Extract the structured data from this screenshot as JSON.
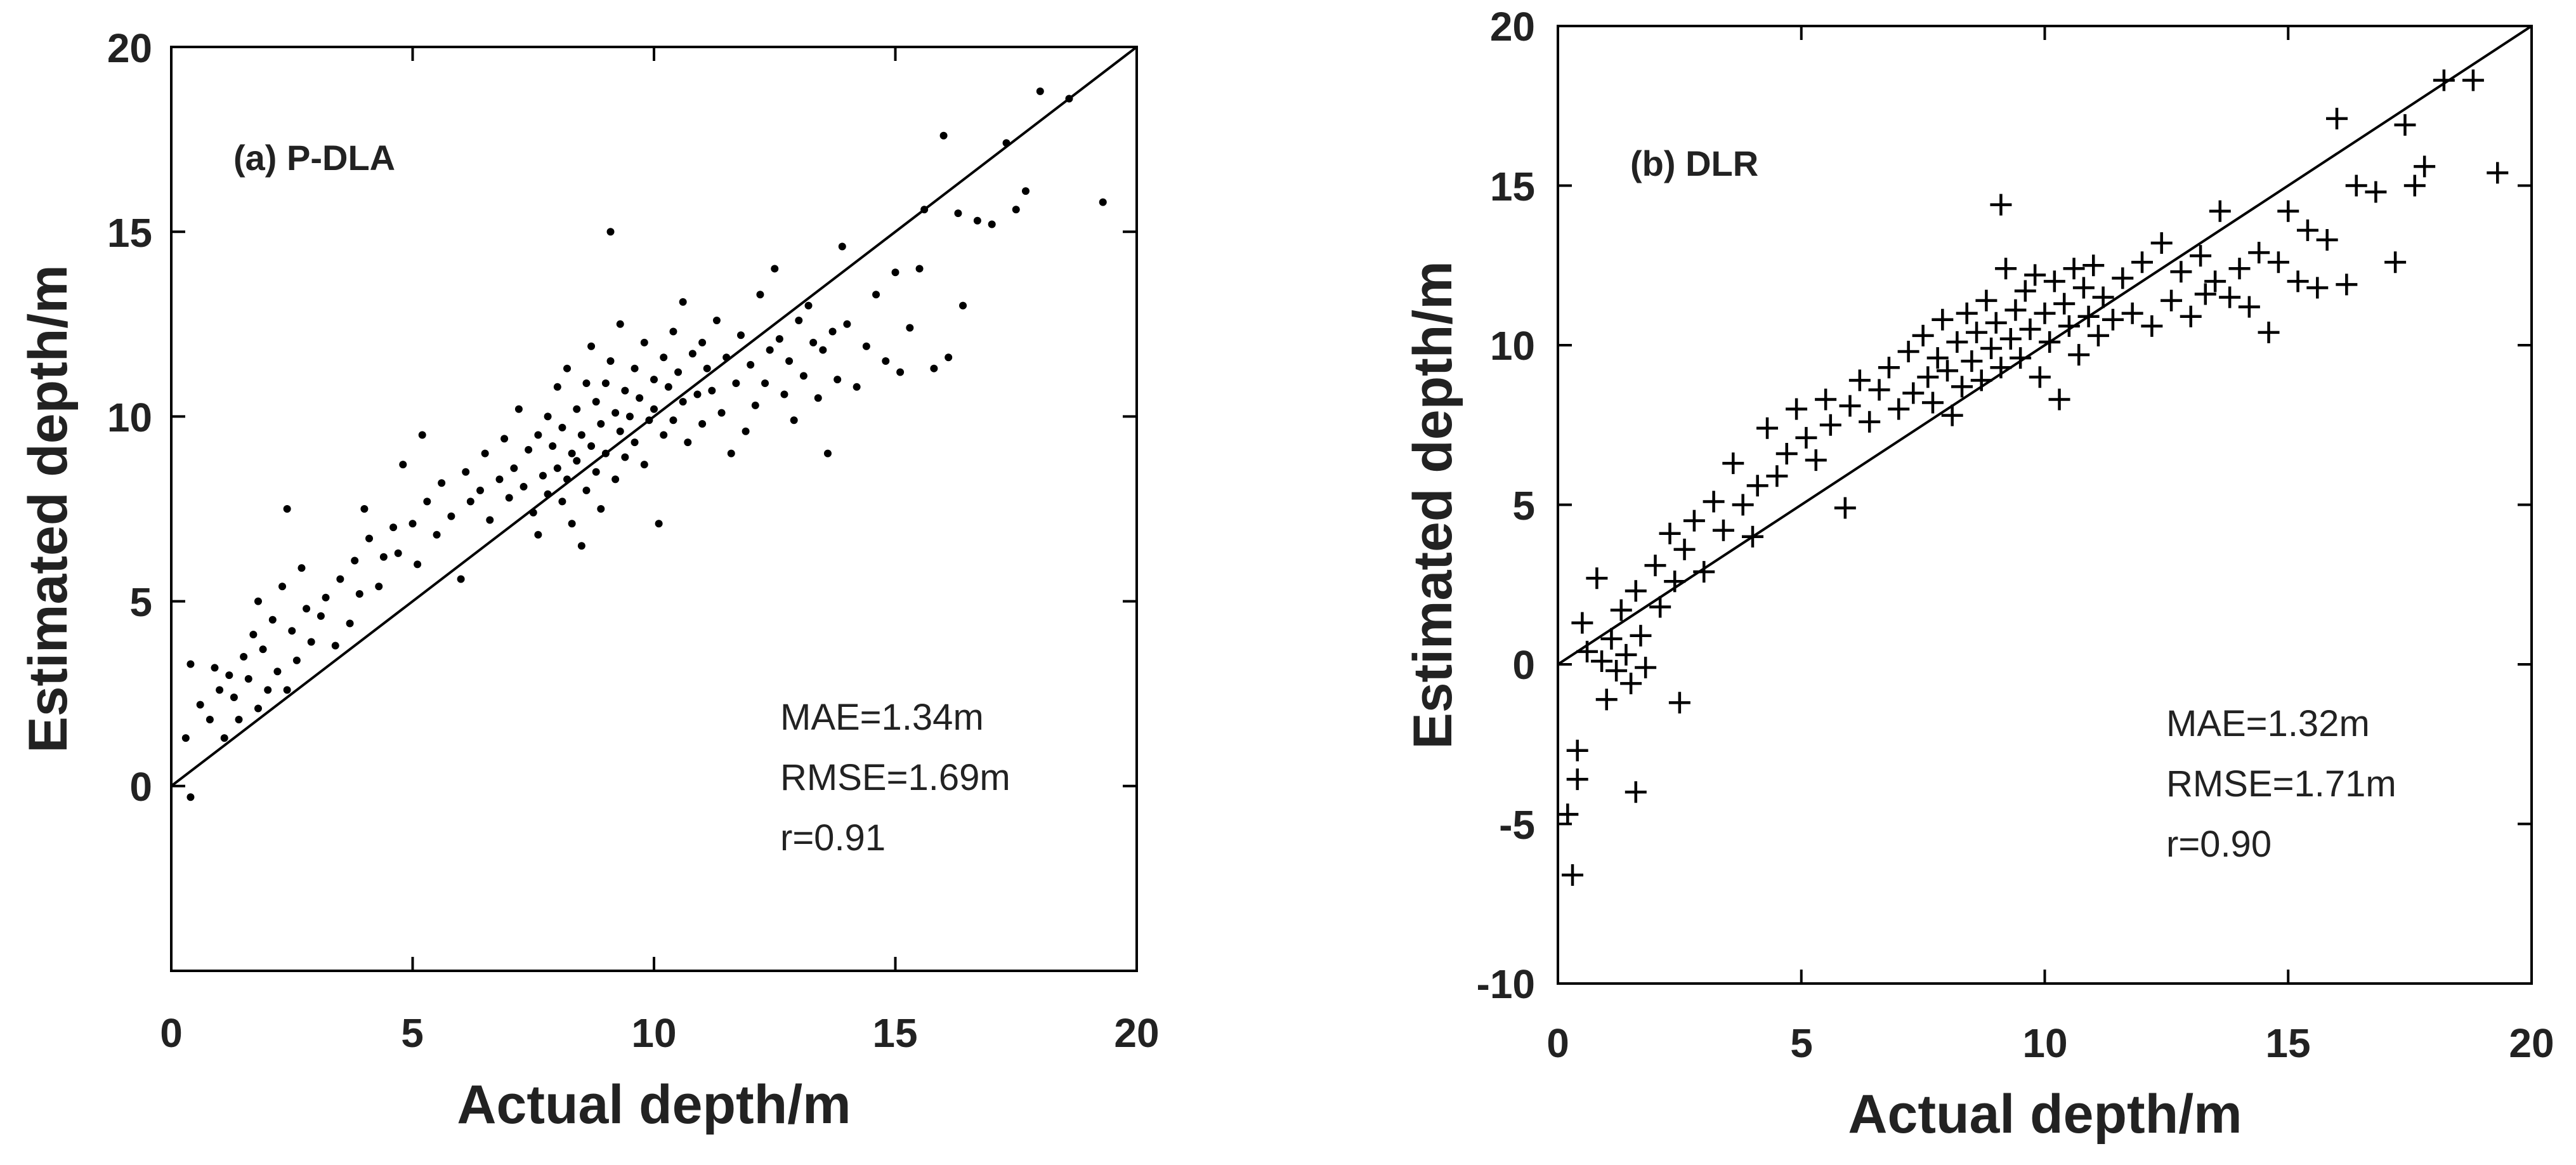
{
  "chart_data": [
    {
      "type": "scatter",
      "marker": "dot",
      "title": "(a) P-DLA",
      "xlabel": "Actual depth/m",
      "ylabel": "Estimated depth/m",
      "xlim": [
        0,
        20
      ],
      "ylim": [
        -5,
        20
      ],
      "xticks": [
        0,
        5,
        10,
        15,
        20
      ],
      "yticks": [
        0,
        5,
        10,
        15,
        20
      ],
      "xtick_labels": [
        "0",
        "5",
        "10",
        "15",
        "20"
      ],
      "ytick_labels": [
        "0",
        "5",
        "10",
        "15",
        "20"
      ],
      "reference_line": "y = x",
      "stats": [
        "MAE=1.34m",
        "RMSE=1.69m",
        "r=0.91"
      ],
      "points": [
        [
          0.4,
          -0.3
        ],
        [
          0.3,
          1.3
        ],
        [
          0.4,
          3.3
        ],
        [
          0.6,
          2.2
        ],
        [
          0.8,
          1.8
        ],
        [
          0.9,
          3.2
        ],
        [
          1.0,
          2.6
        ],
        [
          1.1,
          1.3
        ],
        [
          1.2,
          3.0
        ],
        [
          1.3,
          2.4
        ],
        [
          1.4,
          1.8
        ],
        [
          1.5,
          3.5
        ],
        [
          1.6,
          2.9
        ],
        [
          1.7,
          4.1
        ],
        [
          1.8,
          2.1
        ],
        [
          1.8,
          5.0
        ],
        [
          1.9,
          3.7
        ],
        [
          2.0,
          2.6
        ],
        [
          2.1,
          4.5
        ],
        [
          2.2,
          3.1
        ],
        [
          2.3,
          5.4
        ],
        [
          2.4,
          2.6
        ],
        [
          2.4,
          7.5
        ],
        [
          2.5,
          4.2
        ],
        [
          2.6,
          3.4
        ],
        [
          2.7,
          5.9
        ],
        [
          2.8,
          4.8
        ],
        [
          2.9,
          3.9
        ],
        [
          3.1,
          4.6
        ],
        [
          3.2,
          5.1
        ],
        [
          3.4,
          3.8
        ],
        [
          3.5,
          5.6
        ],
        [
          3.7,
          4.4
        ],
        [
          3.8,
          6.1
        ],
        [
          3.9,
          5.2
        ],
        [
          4.0,
          7.5
        ],
        [
          4.1,
          6.7
        ],
        [
          4.3,
          5.4
        ],
        [
          4.4,
          6.2
        ],
        [
          4.6,
          7.0
        ],
        [
          4.7,
          6.3
        ],
        [
          4.8,
          8.7
        ],
        [
          5.0,
          7.1
        ],
        [
          5.1,
          6.0
        ],
        [
          5.2,
          9.5
        ],
        [
          5.3,
          7.7
        ],
        [
          5.5,
          6.8
        ],
        [
          5.6,
          8.2
        ],
        [
          5.8,
          7.3
        ],
        [
          6.0,
          5.6
        ],
        [
          6.1,
          8.5
        ],
        [
          6.2,
          7.7
        ],
        [
          6.4,
          8.0
        ],
        [
          6.5,
          9.0
        ],
        [
          6.6,
          7.2
        ],
        [
          6.8,
          8.3
        ],
        [
          6.9,
          9.4
        ],
        [
          7.0,
          7.8
        ],
        [
          7.1,
          8.6
        ],
        [
          7.2,
          10.2
        ],
        [
          7.3,
          8.1
        ],
        [
          7.4,
          9.1
        ],
        [
          7.5,
          7.4
        ],
        [
          7.6,
          6.8
        ],
        [
          7.6,
          9.5
        ],
        [
          7.7,
          8.4
        ],
        [
          7.8,
          10.0
        ],
        [
          7.8,
          7.9
        ],
        [
          7.9,
          9.2
        ],
        [
          8.0,
          8.6
        ],
        [
          8.0,
          10.8
        ],
        [
          8.1,
          7.7
        ],
        [
          8.1,
          9.7
        ],
        [
          8.2,
          8.3
        ],
        [
          8.2,
          11.3
        ],
        [
          8.3,
          9.0
        ],
        [
          8.3,
          7.1
        ],
        [
          8.4,
          10.2
        ],
        [
          8.4,
          8.8
        ],
        [
          8.5,
          6.5
        ],
        [
          8.5,
          9.5
        ],
        [
          8.6,
          10.9
        ],
        [
          8.6,
          8.0
        ],
        [
          8.7,
          9.2
        ],
        [
          8.7,
          11.9
        ],
        [
          8.8,
          10.4
        ],
        [
          8.8,
          8.5
        ],
        [
          8.9,
          9.8
        ],
        [
          8.9,
          7.5
        ],
        [
          9.0,
          10.9
        ],
        [
          9.0,
          9.0
        ],
        [
          9.1,
          11.5
        ],
        [
          9.1,
          15.0
        ],
        [
          9.2,
          10.1
        ],
        [
          9.2,
          8.3
        ],
        [
          9.3,
          9.6
        ],
        [
          9.3,
          12.5
        ],
        [
          9.4,
          10.7
        ],
        [
          9.4,
          8.9
        ],
        [
          9.5,
          10.0
        ],
        [
          9.6,
          11.3
        ],
        [
          9.6,
          9.3
        ],
        [
          9.7,
          10.5
        ],
        [
          9.8,
          8.7
        ],
        [
          9.8,
          12.0
        ],
        [
          9.9,
          9.9
        ],
        [
          10.0,
          11.0
        ],
        [
          10.0,
          10.2
        ],
        [
          10.1,
          7.1
        ],
        [
          10.2,
          11.6
        ],
        [
          10.2,
          9.5
        ],
        [
          10.3,
          10.8
        ],
        [
          10.4,
          12.3
        ],
        [
          10.4,
          9.9
        ],
        [
          10.5,
          11.2
        ],
        [
          10.6,
          10.4
        ],
        [
          10.6,
          13.1
        ],
        [
          10.7,
          9.3
        ],
        [
          10.8,
          11.7
        ],
        [
          10.9,
          10.6
        ],
        [
          11.0,
          12.0
        ],
        [
          11.0,
          9.8
        ],
        [
          11.1,
          11.3
        ],
        [
          11.2,
          10.7
        ],
        [
          11.3,
          12.6
        ],
        [
          11.4,
          10.1
        ],
        [
          11.5,
          11.6
        ],
        [
          11.6,
          9.0
        ],
        [
          11.7,
          10.9
        ],
        [
          11.8,
          12.2
        ],
        [
          11.9,
          9.6
        ],
        [
          12.0,
          11.4
        ],
        [
          12.1,
          10.3
        ],
        [
          12.2,
          13.3
        ],
        [
          12.3,
          10.9
        ],
        [
          12.4,
          11.8
        ],
        [
          12.5,
          14.0
        ],
        [
          12.6,
          12.1
        ],
        [
          12.7,
          10.6
        ],
        [
          12.8,
          11.5
        ],
        [
          12.9,
          9.9
        ],
        [
          13.0,
          12.6
        ],
        [
          13.1,
          11.1
        ],
        [
          13.2,
          13.0
        ],
        [
          13.3,
          12.0
        ],
        [
          13.4,
          10.5
        ],
        [
          13.5,
          11.8
        ],
        [
          13.6,
          9.0
        ],
        [
          13.7,
          12.3
        ],
        [
          13.8,
          11.0
        ],
        [
          13.9,
          14.6
        ],
        [
          14.0,
          12.5
        ],
        [
          14.2,
          10.8
        ],
        [
          14.4,
          11.9
        ],
        [
          14.6,
          13.3
        ],
        [
          14.8,
          11.5
        ],
        [
          15.0,
          13.9
        ],
        [
          15.1,
          11.2
        ],
        [
          15.3,
          12.4
        ],
        [
          15.5,
          14.0
        ],
        [
          15.6,
          15.6
        ],
        [
          15.8,
          11.3
        ],
        [
          16.0,
          17.6
        ],
        [
          16.1,
          11.6
        ],
        [
          16.3,
          15.5
        ],
        [
          16.4,
          13.0
        ],
        [
          16.7,
          15.3
        ],
        [
          17.0,
          15.2
        ],
        [
          17.3,
          17.4
        ],
        [
          17.5,
          15.6
        ],
        [
          17.7,
          16.1
        ],
        [
          18.0,
          18.8
        ],
        [
          18.6,
          18.6
        ],
        [
          19.3,
          15.8
        ]
      ]
    },
    {
      "type": "scatter",
      "marker": "plus",
      "title": "(b) DLR",
      "xlabel": "Actual depth/m",
      "ylabel": "Estimated depth/m",
      "xlim": [
        0,
        20
      ],
      "ylim": [
        -10,
        20
      ],
      "xticks": [
        0,
        5,
        10,
        15,
        20
      ],
      "yticks": [
        -10,
        -5,
        0,
        5,
        10,
        15,
        20
      ],
      "xtick_labels": [
        "0",
        "5",
        "10",
        "15",
        "20"
      ],
      "ytick_labels": [
        "-10",
        "-5",
        "0",
        "5",
        "10",
        "15",
        "20"
      ],
      "reference_line": "y = x",
      "stats": [
        "MAE=1.32m",
        "RMSE=1.71m",
        "r=0.90"
      ],
      "points": [
        [
          0.2,
          -4.7
        ],
        [
          0.3,
          -6.6
        ],
        [
          0.4,
          -3.6
        ],
        [
          0.4,
          -2.7
        ],
        [
          0.5,
          1.3
        ],
        [
          0.6,
          0.4
        ],
        [
          0.8,
          2.7
        ],
        [
          0.9,
          0.1
        ],
        [
          1.0,
          -1.1
        ],
        [
          1.1,
          0.8
        ],
        [
          1.2,
          -0.2
        ],
        [
          1.3,
          1.7
        ],
        [
          1.4,
          0.3
        ],
        [
          1.5,
          -0.6
        ],
        [
          1.6,
          -4.0
        ],
        [
          1.6,
          2.3
        ],
        [
          1.7,
          0.9
        ],
        [
          1.8,
          -0.1
        ],
        [
          2.0,
          3.1
        ],
        [
          2.1,
          1.8
        ],
        [
          2.3,
          4.1
        ],
        [
          2.4,
          2.6
        ],
        [
          2.5,
          -1.2
        ],
        [
          2.6,
          3.6
        ],
        [
          2.8,
          4.5
        ],
        [
          3.0,
          2.9
        ],
        [
          3.2,
          5.1
        ],
        [
          3.4,
          4.2
        ],
        [
          3.6,
          6.3
        ],
        [
          3.8,
          5.0
        ],
        [
          4.0,
          4.0
        ],
        [
          4.1,
          5.6
        ],
        [
          4.3,
          7.4
        ],
        [
          4.5,
          5.9
        ],
        [
          4.7,
          6.6
        ],
        [
          4.9,
          8.0
        ],
        [
          5.1,
          7.1
        ],
        [
          5.3,
          6.4
        ],
        [
          5.5,
          8.3
        ],
        [
          5.6,
          7.5
        ],
        [
          5.9,
          4.9
        ],
        [
          6.0,
          8.1
        ],
        [
          6.2,
          8.9
        ],
        [
          6.4,
          7.6
        ],
        [
          6.6,
          8.6
        ],
        [
          6.8,
          9.3
        ],
        [
          7.0,
          8.0
        ],
        [
          7.2,
          9.8
        ],
        [
          7.3,
          8.5
        ],
        [
          7.5,
          10.3
        ],
        [
          7.6,
          9.0
        ],
        [
          7.7,
          8.2
        ],
        [
          7.8,
          9.6
        ],
        [
          7.9,
          10.8
        ],
        [
          8.0,
          9.2
        ],
        [
          8.1,
          7.8
        ],
        [
          8.2,
          10.1
        ],
        [
          8.3,
          8.7
        ],
        [
          8.4,
          11.0
        ],
        [
          8.5,
          9.5
        ],
        [
          8.6,
          10.4
        ],
        [
          8.7,
          8.9
        ],
        [
          8.8,
          11.4
        ],
        [
          8.9,
          9.9
        ],
        [
          9.0,
          10.7
        ],
        [
          9.1,
          14.4
        ],
        [
          9.1,
          9.3
        ],
        [
          9.2,
          12.4
        ],
        [
          9.3,
          10.2
        ],
        [
          9.4,
          11.1
        ],
        [
          9.5,
          9.6
        ],
        [
          9.6,
          11.7
        ],
        [
          9.7,
          10.5
        ],
        [
          9.8,
          12.2
        ],
        [
          9.9,
          9.0
        ],
        [
          10.0,
          11.0
        ],
        [
          10.1,
          10.1
        ],
        [
          10.2,
          12.0
        ],
        [
          10.3,
          8.3
        ],
        [
          10.4,
          11.3
        ],
        [
          10.5,
          10.6
        ],
        [
          10.6,
          12.4
        ],
        [
          10.7,
          9.7
        ],
        [
          10.8,
          11.8
        ],
        [
          10.9,
          10.9
        ],
        [
          11.0,
          12.5
        ],
        [
          11.1,
          10.3
        ],
        [
          11.2,
          11.5
        ],
        [
          11.4,
          10.8
        ],
        [
          11.6,
          12.1
        ],
        [
          11.8,
          11.0
        ],
        [
          12.0,
          12.6
        ],
        [
          12.2,
          10.6
        ],
        [
          12.4,
          13.2
        ],
        [
          12.6,
          11.4
        ],
        [
          12.8,
          12.3
        ],
        [
          13.0,
          10.9
        ],
        [
          13.2,
          12.8
        ],
        [
          13.3,
          11.6
        ],
        [
          13.5,
          12.0
        ],
        [
          13.6,
          14.2
        ],
        [
          13.8,
          11.5
        ],
        [
          14.0,
          12.4
        ],
        [
          14.2,
          11.2
        ],
        [
          14.4,
          12.9
        ],
        [
          14.6,
          10.4
        ],
        [
          14.8,
          12.6
        ],
        [
          15.0,
          14.2
        ],
        [
          15.2,
          12.0
        ],
        [
          15.4,
          13.6
        ],
        [
          15.6,
          11.8
        ],
        [
          15.8,
          13.3
        ],
        [
          16.0,
          17.1
        ],
        [
          16.2,
          11.9
        ],
        [
          16.4,
          15.0
        ],
        [
          16.8,
          14.8
        ],
        [
          17.2,
          12.6
        ],
        [
          17.4,
          16.9
        ],
        [
          17.6,
          15.0
        ],
        [
          17.8,
          15.6
        ],
        [
          18.2,
          18.3
        ],
        [
          18.8,
          18.3
        ],
        [
          19.3,
          15.4
        ]
      ]
    }
  ]
}
